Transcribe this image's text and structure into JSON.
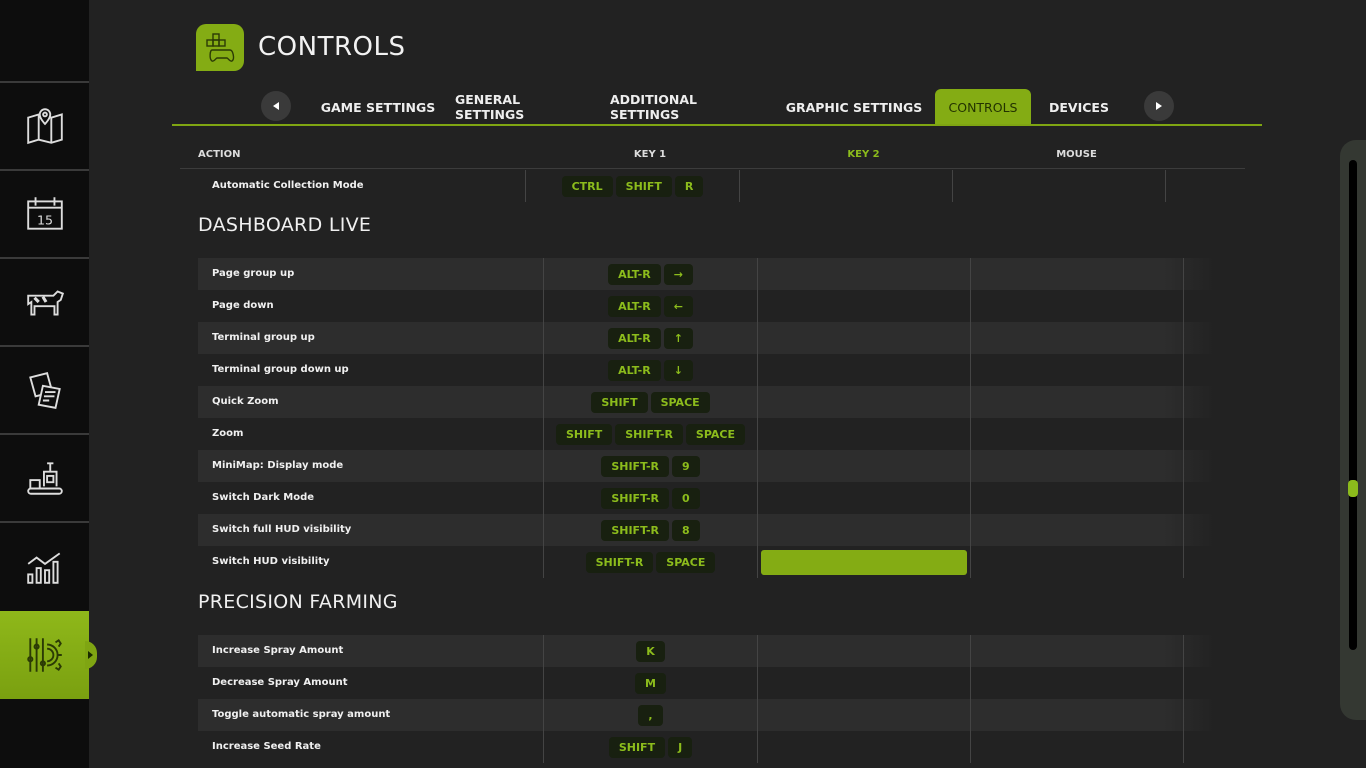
{
  "header": {
    "title": "CONTROLS",
    "icon": "gamepad-keys-icon"
  },
  "sidebar": {
    "items": [
      {
        "icon": "map-icon"
      },
      {
        "icon": "calendar-icon",
        "text": "15"
      },
      {
        "icon": "cow-icon"
      },
      {
        "icon": "contracts-icon"
      },
      {
        "icon": "production-icon"
      },
      {
        "icon": "statistics-icon"
      },
      {
        "icon": "settings-icon",
        "active": true
      }
    ]
  },
  "tabs": [
    {
      "label": "GAME SETTINGS"
    },
    {
      "label": "GENERAL SETTINGS"
    },
    {
      "label": "ADDITIONAL SETTINGS"
    },
    {
      "label": "GRAPHIC SETTINGS"
    },
    {
      "label": "CONTROLS",
      "active": true
    },
    {
      "label": "DEVICES"
    }
  ],
  "columns": {
    "action": "ACTION",
    "key1": "KEY 1",
    "key2": "KEY 2",
    "mouse": "MOUSE"
  },
  "colors": {
    "accent": "#84ac14",
    "key_text": "#8cbc1c"
  },
  "top_rows": [
    {
      "action": "Automatic Collection Mode",
      "key1": [
        "CTRL",
        "SHIFT",
        "R"
      ]
    }
  ],
  "sections": [
    {
      "title": "DASHBOARD LIVE",
      "rows": [
        {
          "action": "Page group up",
          "key1": [
            "ALT-R",
            "→"
          ]
        },
        {
          "action": "Page down",
          "key1": [
            "ALT-R",
            "←"
          ]
        },
        {
          "action": "Terminal group up",
          "key1": [
            "ALT-R",
            "↑"
          ]
        },
        {
          "action": "Terminal group down up",
          "key1": [
            "ALT-R",
            "↓"
          ]
        },
        {
          "action": "Quick Zoom",
          "key1": [
            "SHIFT",
            "SPACE"
          ]
        },
        {
          "action": "Zoom",
          "key1": [
            "SHIFT",
            "SHIFT-R",
            "SPACE"
          ]
        },
        {
          "action": "MiniMap: Display mode",
          "key1": [
            "SHIFT-R",
            "9"
          ]
        },
        {
          "action": "Switch Dark Mode",
          "key1": [
            "SHIFT-R",
            "0"
          ]
        },
        {
          "action": "Switch full HUD visibility",
          "key1": [
            "SHIFT-R",
            "8"
          ]
        },
        {
          "action": "Switch HUD visibility",
          "key1": [
            "SHIFT-R",
            "SPACE"
          ],
          "key2_selected": true
        }
      ]
    },
    {
      "title": "PRECISION FARMING",
      "rows": [
        {
          "action": "Increase Spray Amount",
          "key1": [
            "K"
          ]
        },
        {
          "action": "Decrease Spray Amount",
          "key1": [
            "M"
          ]
        },
        {
          "action": "Toggle automatic spray amount",
          "key1": [
            ","
          ]
        },
        {
          "action": "Increase Seed Rate",
          "key1": [
            "SHIFT",
            "J"
          ]
        }
      ]
    }
  ]
}
